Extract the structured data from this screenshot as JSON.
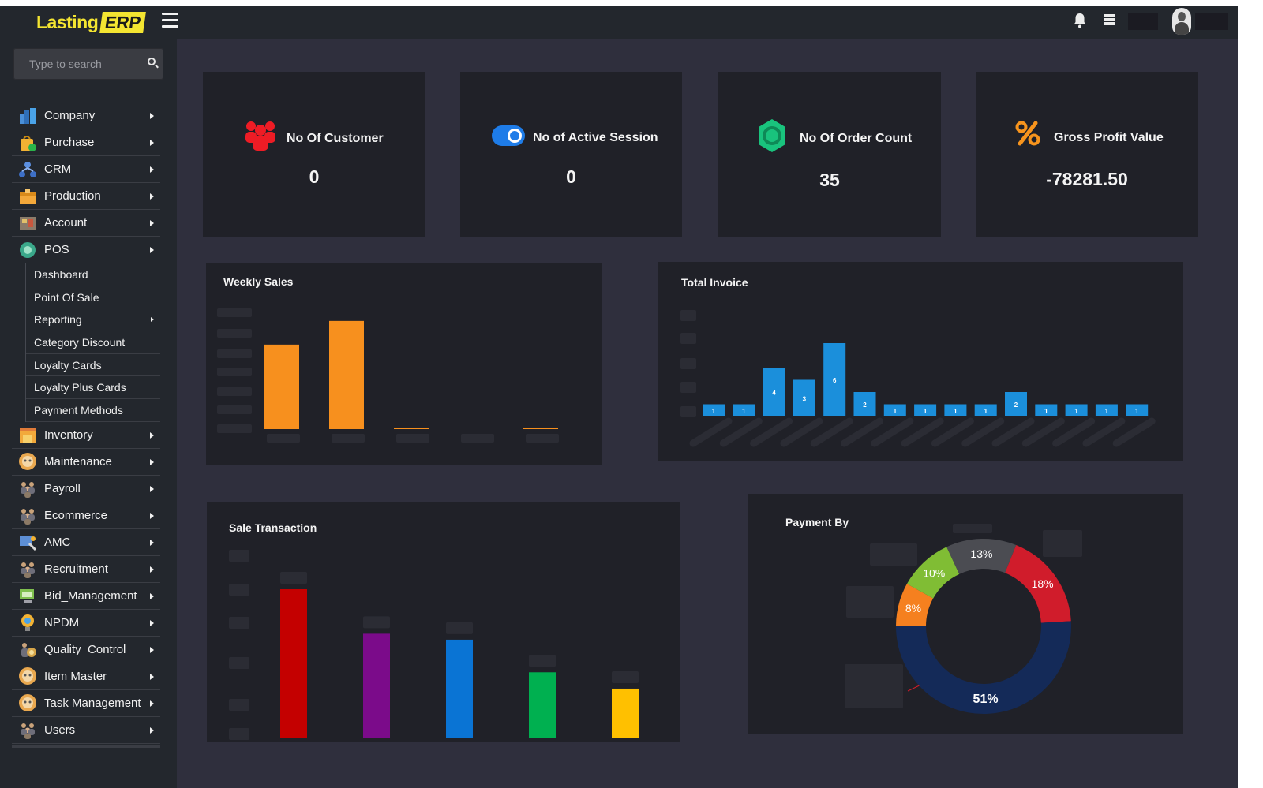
{
  "brand": {
    "name": "Lasting",
    "badge": "ERP",
    "accent": "#f4e531"
  },
  "topbar": {
    "icons": [
      "bell-icon",
      "apps-grid-icon",
      "user-avatar"
    ]
  },
  "search": {
    "placeholder": "Type to search"
  },
  "sidebar": {
    "items": [
      {
        "label": "Company",
        "icon": "building-icon"
      },
      {
        "label": "Purchase",
        "icon": "shopping-bag-icon"
      },
      {
        "label": "CRM",
        "icon": "network-icon"
      },
      {
        "label": "Production",
        "icon": "box-icon"
      },
      {
        "label": "Account",
        "icon": "accounting-icon"
      },
      {
        "label": "POS",
        "icon": "pos-icon"
      }
    ],
    "pos_sub": [
      {
        "label": "Dashboard"
      },
      {
        "label": "Point Of Sale"
      },
      {
        "label": "Reporting"
      },
      {
        "label": "Category Discount"
      },
      {
        "label": "Loyalty Cards"
      },
      {
        "label": "Loyalty Plus Cards"
      },
      {
        "label": "Payment Methods"
      }
    ],
    "items_after": [
      {
        "label": "Inventory",
        "icon": "warehouse-icon"
      },
      {
        "label": "Maintenance",
        "icon": "gear-face-icon"
      },
      {
        "label": "Payroll",
        "icon": "team-icon"
      },
      {
        "label": "Ecommerce",
        "icon": "team-icon"
      },
      {
        "label": "AMC",
        "icon": "service-icon"
      },
      {
        "label": "Recruitment",
        "icon": "team-icon"
      },
      {
        "label": "Bid_Management",
        "icon": "bid-icon"
      },
      {
        "label": "NPDM",
        "icon": "idea-icon"
      },
      {
        "label": "Quality_Control",
        "icon": "quality-icon"
      },
      {
        "label": "Item Master",
        "icon": "gear-face-icon"
      },
      {
        "label": "Task Management",
        "icon": "gear-face-icon"
      },
      {
        "label": "Users",
        "icon": "team-icon"
      }
    ]
  },
  "stats": [
    {
      "title": "No Of Customer",
      "value": "0",
      "icon": "users-icon",
      "color": "#ee1c25"
    },
    {
      "title": "No of Active Session",
      "value": "0",
      "icon": "toggle-icon",
      "color": "#1e7ce8"
    },
    {
      "title": "No Of Order Count",
      "value": "35",
      "icon": "badge-icon",
      "color": "#19c37d"
    },
    {
      "title": "Gross Profit Value",
      "value": "-78281.50",
      "icon": "percent-icon",
      "color": "#f7941d"
    }
  ],
  "chart_data": [
    {
      "type": "bar",
      "title": "Weekly Sales",
      "categories": [
        "",
        "",
        "",
        "",
        ""
      ],
      "values": [
        100,
        128,
        1,
        0,
        0.5
      ],
      "ylim": [
        0,
        140
      ],
      "color": "#f7901e",
      "grid": false
    },
    {
      "type": "bar",
      "title": "Total Invoice",
      "categories": [
        "",
        "",
        "",
        "",
        "",
        "",
        "",
        "",
        "",
        "",
        "",
        "",
        "",
        "",
        ""
      ],
      "values": [
        1,
        1,
        4,
        3,
        6,
        2,
        1,
        1,
        1,
        1,
        2,
        1,
        1,
        1,
        1
      ],
      "labels": [
        "1",
        "1",
        "4",
        "3",
        "6",
        "2",
        "1",
        "1",
        "1",
        "1",
        "2",
        "1",
        "1",
        "1",
        "1"
      ],
      "ylim": [
        0,
        6
      ],
      "color": "#1b8fdb",
      "grid": false
    },
    {
      "type": "bar",
      "title": "Sale Transaction",
      "categories": [
        "",
        "",
        "",
        "",
        ""
      ],
      "values": [
        100,
        70,
        66,
        44,
        33
      ],
      "colors": [
        "#c40000",
        "#7b0b8a",
        "#0a74d4",
        "#00b050",
        "#ffc000"
      ],
      "ylim": [
        0,
        100
      ],
      "grid": false
    },
    {
      "type": "pie",
      "title": "Payment By",
      "labels": [
        "13%",
        "18%",
        "51%",
        "8%",
        "10%"
      ],
      "values": [
        13,
        18,
        51,
        8,
        10
      ],
      "colors": [
        "#4b4c52",
        "#d01c2b",
        "#142a58",
        "#f5801f",
        "#80bd34"
      ],
      "donut": true
    }
  ]
}
